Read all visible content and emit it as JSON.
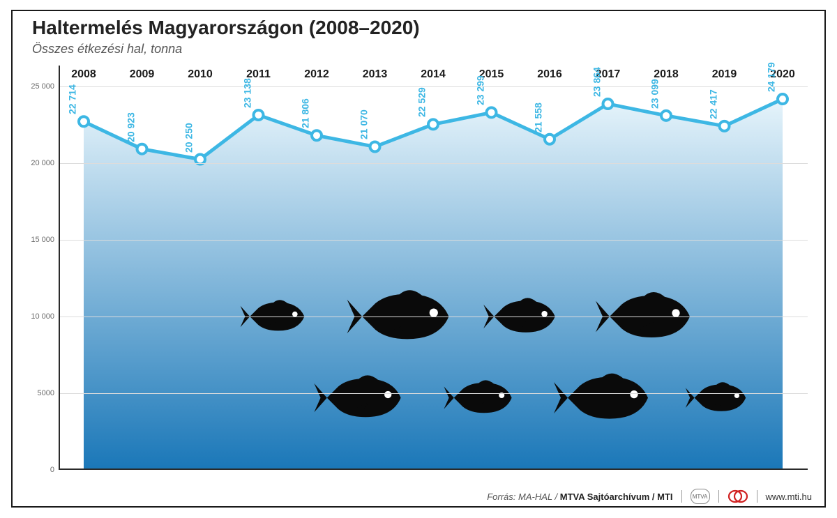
{
  "title": "Haltermelés Magyarországon (2008–2020)",
  "subtitle": "Összes étkezési hal, tonna",
  "chart": {
    "type": "line",
    "years": [
      "2008",
      "2009",
      "2010",
      "2011",
      "2012",
      "2013",
      "2014",
      "2015",
      "2016",
      "2017",
      "2018",
      "2019",
      "2020"
    ],
    "values": [
      22714,
      20923,
      20250,
      23138,
      21806,
      21070,
      22529,
      23299,
      21558,
      23864,
      23099,
      22417,
      24179
    ],
    "value_labels": [
      "22 714",
      "20 923",
      "20 250",
      "23 138",
      "21 806",
      "21 070",
      "22 529",
      "23 299",
      "21 558",
      "23 864",
      "23 099",
      "22 417",
      "24 179"
    ],
    "ylim": [
      0,
      25000
    ],
    "yticks": [
      0,
      5000,
      10000,
      15000,
      20000,
      25000
    ],
    "ytick_labels": [
      "0",
      "5000",
      "10 000",
      "15 000",
      "20 000",
      "25 000"
    ],
    "line_color": "#3db7e4",
    "line_width": 5,
    "marker_fill": "#ffffff",
    "marker_stroke": "#3db7e4",
    "marker_stroke_width": 4,
    "marker_radius": 7,
    "grid_color": "#dcdcdc",
    "axis_color": "#2a2a2a",
    "background_color": "#ffffff",
    "gradient_top": "#e6f4fb",
    "gradient_bottom": "#1a77b8",
    "x_label_fontsize": 16,
    "x_label_fontweight": 700,
    "y_label_fontsize": 11,
    "data_label_fontsize": 14,
    "data_label_color": "#3db7e4",
    "fish_color": "#0a0a0a",
    "fish_eye_color": "#ffffff",
    "title_fontsize": 28,
    "subtitle_fontsize": 18
  },
  "footer": {
    "source_prefix": "Forrás: ",
    "source_text": "MA-HAL / ",
    "source_strong": "MTVA Sajtóarchívum / MTI",
    "badge_text": "MTVA",
    "site": "www.mti.hu"
  }
}
